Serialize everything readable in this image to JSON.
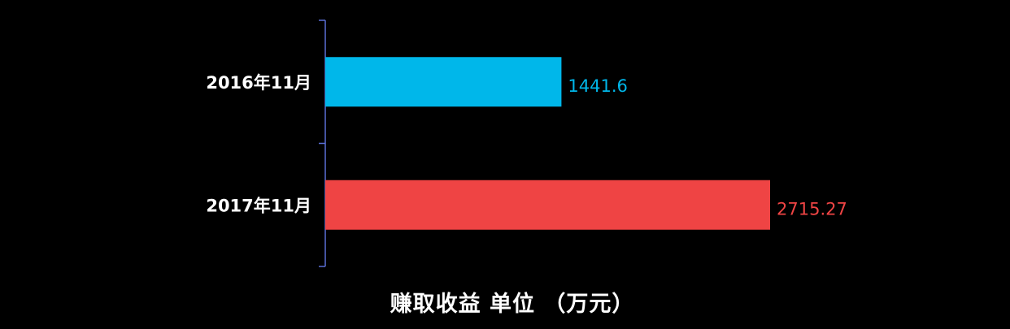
{
  "chart_data": {
    "type": "bar",
    "orientation": "horizontal",
    "categories": [
      "2016年11月",
      "2017年11月"
    ],
    "values": [
      1441.6,
      2715.27
    ],
    "value_labels": [
      "1441.6",
      "2715.27"
    ],
    "colors": [
      "#00b7ea",
      "#ef4444"
    ],
    "xlabel": "赚取收益 单位 （万元）",
    "title": "",
    "ylabel": "",
    "xlim": [
      0,
      2715.27
    ],
    "grid": false,
    "legend": "none"
  },
  "theme": {
    "background": "#000000",
    "axis_color": "#5b6fd6",
    "text_color": "#ffffff"
  }
}
